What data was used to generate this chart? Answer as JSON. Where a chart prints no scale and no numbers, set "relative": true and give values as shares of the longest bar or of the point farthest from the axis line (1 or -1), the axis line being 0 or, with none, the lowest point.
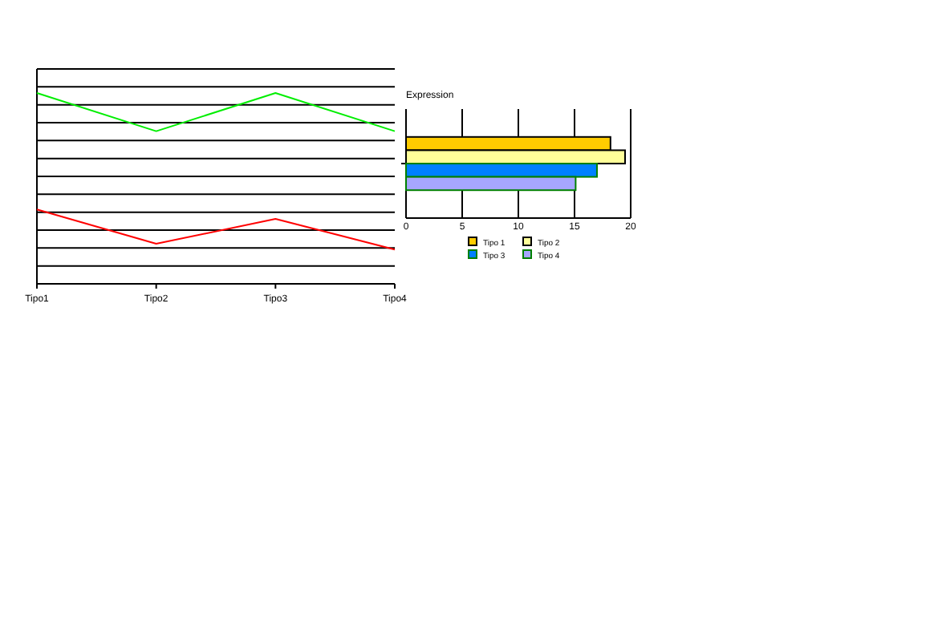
{
  "chart_data": [
    {
      "type": "line",
      "relative": true,
      "categories": [
        "Tipo1",
        "Tipo2",
        "Tipo3",
        "Tipo4"
      ],
      "grid": "y",
      "legend": false,
      "marker": "none",
      "series": [
        {
          "color": "#00ee00",
          "values": [
            1,
            0.8,
            1,
            0.8
          ]
        },
        {
          "color": "#ff0000",
          "values": [
            0.39,
            0.21,
            0.34,
            0.18
          ]
        }
      ]
    },
    {
      "type": "bar",
      "orientation": "horizontal",
      "title": "Expression",
      "categories": [
        null
      ],
      "xlim": [
        0,
        20
      ],
      "xticks": [
        0,
        5,
        10,
        15,
        20
      ],
      "grid": "x",
      "legend": "bottom",
      "series": [
        {
          "name": "Tipo 1",
          "color": "#ffcc00",
          "values": [
            18.2
          ]
        },
        {
          "name": "Tipo 2",
          "color": "#ffff99",
          "values": [
            19.5
          ]
        },
        {
          "name": "Tipo 3",
          "color": "#0080ff",
          "values": [
            17.0
          ]
        },
        {
          "name": "Tipo 4",
          "color": "#a6a6ff",
          "values": [
            15.1
          ]
        }
      ]
    }
  ]
}
